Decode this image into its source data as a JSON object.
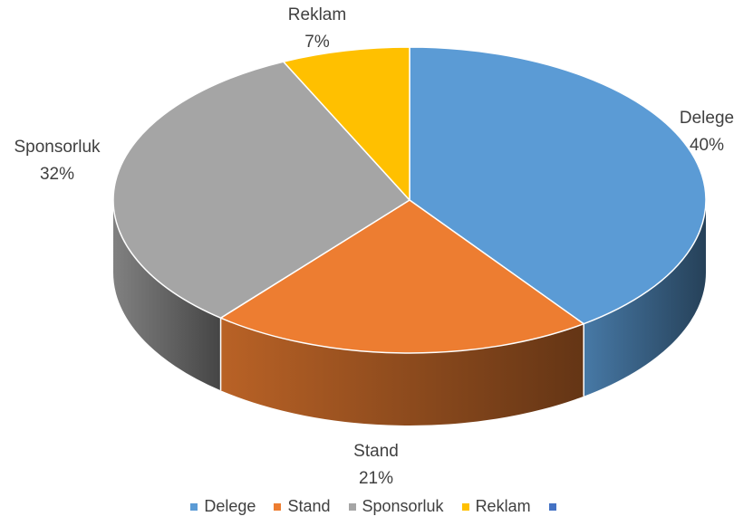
{
  "chart_data": {
    "type": "pie",
    "style": "3d",
    "categories": [
      "Delege",
      "Stand",
      "Sponsorluk",
      "Reklam"
    ],
    "values": [
      40,
      21,
      32,
      7
    ],
    "labels": [
      "40%",
      "21%",
      "32%",
      "7%"
    ],
    "colors": [
      "#5B9BD5",
      "#ED7D31",
      "#A5A5A5",
      "#FFC000"
    ],
    "legend": {
      "position": "bottom",
      "entries": [
        "Delege",
        "Stand",
        "Sponsorluk",
        "Reklam",
        ""
      ],
      "colors": [
        "#5B9BD5",
        "#ED7D31",
        "#A5A5A5",
        "#FFC000",
        "#4472C4"
      ]
    }
  }
}
